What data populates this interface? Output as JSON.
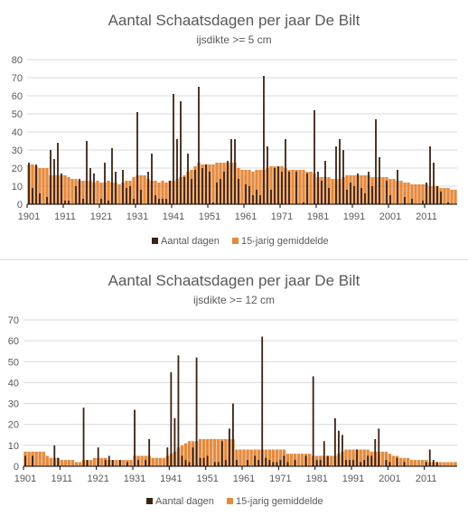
{
  "colors": {
    "daily": "#3b2314",
    "avg": "#e58a3e",
    "grid": "#d9d9d9",
    "axis": "#000000",
    "text": "#595959"
  },
  "chart_data": [
    {
      "type": "bar",
      "title": "Aantal Schaatsdagen per jaar De Bilt",
      "subtitle": "ijsdikte >= 5 cm",
      "ylim": [
        0,
        80
      ],
      "yticks": [
        0,
        10,
        20,
        30,
        40,
        50,
        60,
        70,
        80
      ],
      "x_start": 1901,
      "x_end": 2019,
      "xtick_labels": [
        "1901",
        "1911",
        "1921",
        "1931",
        "1941",
        "1951",
        "1961",
        "1971",
        "1981",
        "1991",
        "2001",
        "2011"
      ],
      "legend": [
        "Aantal dagen",
        "15-jarig gemiddelde"
      ],
      "series": [
        {
          "name": "Aantal dagen",
          "values": [
            23,
            9,
            22,
            6,
            0,
            4,
            30,
            25,
            34,
            17,
            2,
            2,
            0,
            10,
            14,
            3,
            35,
            20,
            17,
            0,
            3,
            23,
            2,
            31,
            18,
            0,
            19,
            9,
            10,
            3,
            51,
            8,
            0,
            18,
            28,
            5,
            3,
            3,
            3,
            13,
            61,
            36,
            57,
            15,
            28,
            14,
            19,
            65,
            20,
            22,
            18,
            1,
            12,
            14,
            18,
            24,
            36,
            36,
            14,
            0,
            11,
            10,
            5,
            8,
            5,
            71,
            32,
            8,
            20,
            21,
            18,
            36,
            18,
            0,
            18,
            0,
            1,
            17,
            0,
            52,
            18,
            13,
            24,
            9,
            0,
            32,
            36,
            30,
            8,
            12,
            10,
            17,
            9,
            6,
            18,
            10,
            47,
            26,
            0,
            13,
            5,
            0,
            19,
            0,
            4,
            0,
            3,
            0,
            0,
            2,
            12,
            32,
            23,
            10,
            7,
            0,
            1,
            0,
            0
          ]
        },
        {
          "name": "15-jarig gemiddelde",
          "values": [
            22,
            22,
            21,
            20,
            20,
            20,
            16,
            16,
            16,
            16,
            16,
            15,
            14,
            14,
            13,
            13,
            13,
            13,
            12,
            13,
            12,
            12,
            13,
            12,
            12,
            11,
            12,
            13,
            13,
            15,
            16,
            16,
            16,
            14,
            13,
            13,
            12,
            13,
            12,
            13,
            13,
            14,
            15,
            16,
            18,
            19,
            21,
            23,
            22,
            22,
            22,
            22,
            23,
            23,
            23,
            23,
            23,
            23,
            20,
            19,
            19,
            19,
            18,
            19,
            19,
            19,
            20,
            21,
            21,
            21,
            21,
            20,
            19,
            19,
            19,
            19,
            19,
            18,
            18,
            17,
            15,
            15,
            15,
            15,
            14,
            14,
            14,
            15,
            16,
            16,
            16,
            16,
            16,
            16,
            16,
            15,
            15,
            15,
            15,
            15,
            14,
            14,
            13,
            13,
            12,
            12,
            11,
            11,
            11,
            11,
            11,
            10,
            10,
            10,
            9,
            9,
            9,
            8,
            8
          ]
        }
      ]
    },
    {
      "type": "bar",
      "title": "Aantal Schaatsdagen per jaar De Bilt",
      "subtitle": "ijsdikte >= 12 cm",
      "ylim": [
        0,
        70
      ],
      "yticks": [
        0,
        10,
        20,
        30,
        40,
        50,
        60,
        70
      ],
      "x_start": 1901,
      "x_end": 2019,
      "xtick_labels": [
        "1901",
        "1911",
        "1921",
        "1931",
        "1941",
        "1951",
        "1961",
        "1971",
        "1981",
        "1991",
        "2001",
        "2011"
      ],
      "legend": [
        "Aantal dagen",
        "15-jarig gemiddelde"
      ],
      "series": [
        {
          "name": "Aantal dagen",
          "values": [
            5,
            0,
            5,
            0,
            0,
            0,
            0,
            0,
            10,
            4,
            0,
            0,
            0,
            0,
            0,
            0,
            28,
            3,
            0,
            0,
            9,
            0,
            3,
            5,
            3,
            0,
            3,
            0,
            2,
            0,
            27,
            3,
            0,
            3,
            13,
            0,
            0,
            0,
            0,
            9,
            45,
            23,
            53,
            5,
            3,
            2,
            9,
            52,
            4,
            4,
            5,
            0,
            2,
            2,
            12,
            3,
            18,
            30,
            3,
            0,
            0,
            3,
            0,
            5,
            3,
            62,
            4,
            3,
            2,
            2,
            3,
            5,
            2,
            0,
            3,
            0,
            0,
            5,
            0,
            43,
            3,
            3,
            12,
            5,
            0,
            23,
            17,
            15,
            3,
            3,
            3,
            8,
            2,
            3,
            5,
            5,
            13,
            18,
            0,
            3,
            2,
            0,
            4,
            0,
            2,
            0,
            0,
            0,
            0,
            0,
            2,
            8,
            3,
            2,
            0,
            0,
            0,
            0,
            0
          ]
        },
        {
          "name": "15-jarig gemiddelde",
          "values": [
            7,
            7,
            7,
            7,
            7,
            7,
            5,
            4,
            4,
            4,
            3,
            3,
            3,
            3,
            2,
            2,
            3,
            3,
            3,
            4,
            4,
            4,
            4,
            3,
            3,
            3,
            3,
            3,
            3,
            3,
            5,
            5,
            5,
            5,
            5,
            4,
            4,
            4,
            4,
            5,
            6,
            7,
            9,
            10,
            11,
            12,
            12,
            12,
            13,
            13,
            13,
            13,
            13,
            13,
            13,
            13,
            13,
            13,
            8,
            8,
            8,
            8,
            8,
            8,
            8,
            8,
            8,
            8,
            8,
            8,
            8,
            8,
            6,
            6,
            6,
            6,
            6,
            6,
            6,
            5,
            5,
            5,
            5,
            5,
            5,
            5,
            6,
            7,
            8,
            8,
            8,
            8,
            8,
            8,
            8,
            7,
            7,
            7,
            7,
            7,
            6,
            5,
            5,
            4,
            4,
            4,
            3,
            3,
            3,
            3,
            3,
            2,
            2,
            2,
            2,
            2,
            2,
            2,
            2
          ]
        }
      ]
    }
  ]
}
